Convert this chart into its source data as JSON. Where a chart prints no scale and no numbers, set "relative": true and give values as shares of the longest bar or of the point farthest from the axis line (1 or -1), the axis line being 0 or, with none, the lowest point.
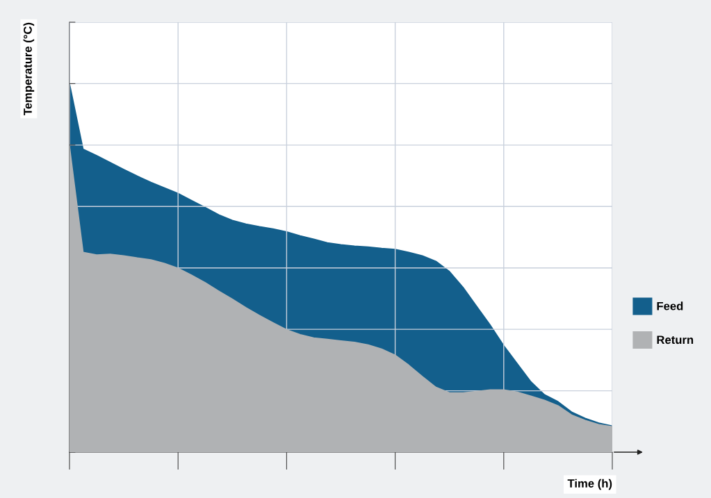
{
  "chart_data": {
    "type": "area",
    "relative": true,
    "xlabel": "Time (h)",
    "ylabel": "Temperature (°C)",
    "grid": true,
    "legend": "right",
    "tick_labels": false,
    "categories": [
      null,
      null,
      null,
      null,
      null,
      null,
      null,
      null,
      null,
      null,
      null,
      null,
      null,
      null,
      null,
      null,
      null,
      null,
      null,
      null,
      null,
      null,
      null,
      null,
      null,
      null,
      null,
      null,
      null,
      null,
      null,
      null,
      null,
      null,
      null,
      null,
      null,
      null,
      null,
      null,
      null
    ],
    "series": [
      {
        "name": "Feed",
        "color": "#135f8c",
        "values": [
          1.0,
          0.822,
          0.805,
          0.786,
          0.767,
          0.749,
          0.732,
          0.717,
          0.702,
          0.683,
          0.664,
          0.644,
          0.629,
          0.619,
          0.612,
          0.606,
          0.598,
          0.587,
          0.578,
          0.568,
          0.563,
          0.559,
          0.557,
          0.553,
          0.55,
          0.542,
          0.533,
          0.518,
          0.49,
          0.447,
          0.396,
          0.345,
          0.289,
          0.24,
          0.191,
          0.156,
          0.137,
          0.109,
          0.092,
          0.079,
          0.071
        ]
      },
      {
        "name": "Return",
        "color": "#b0b2b4",
        "values": [
          0.829,
          0.542,
          0.535,
          0.537,
          0.533,
          0.527,
          0.522,
          0.512,
          0.499,
          0.48,
          0.46,
          0.437,
          0.415,
          0.392,
          0.371,
          0.351,
          0.332,
          0.319,
          0.31,
          0.306,
          0.302,
          0.298,
          0.291,
          0.28,
          0.263,
          0.236,
          0.205,
          0.176,
          0.161,
          0.161,
          0.165,
          0.169,
          0.169,
          0.163,
          0.152,
          0.141,
          0.126,
          0.101,
          0.086,
          0.075,
          0.069
        ]
      }
    ]
  }
}
